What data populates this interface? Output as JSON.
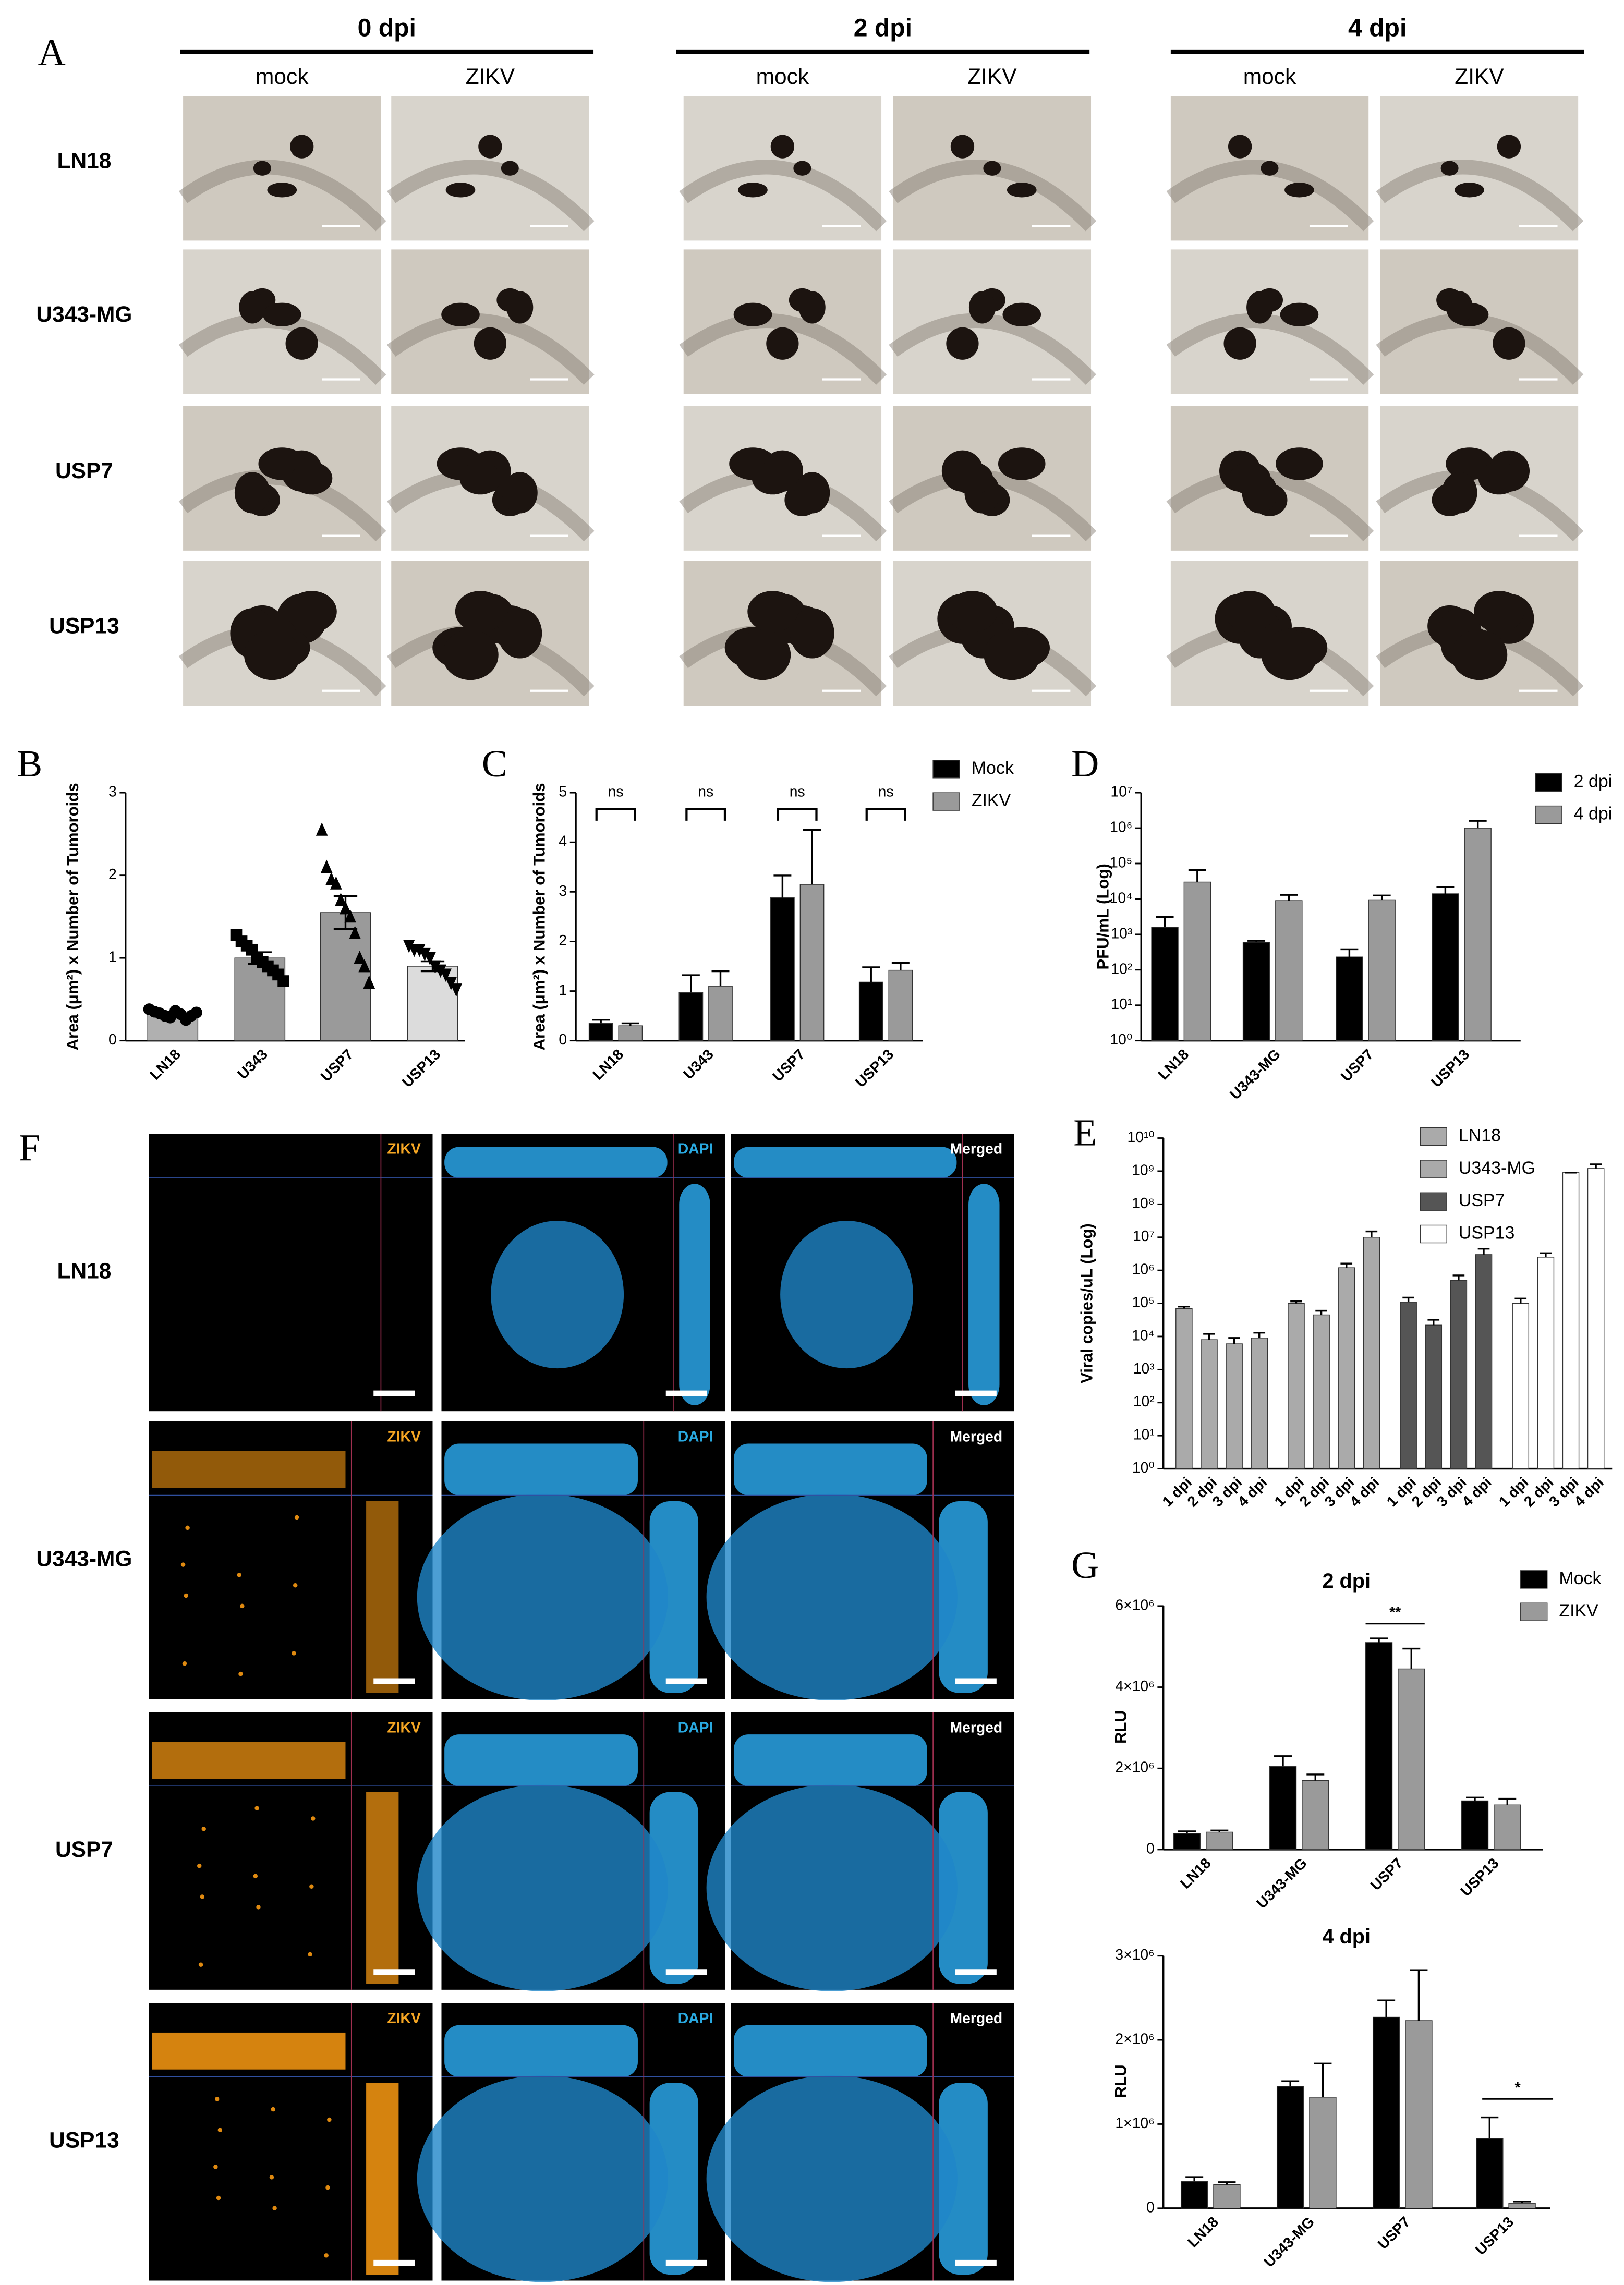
{
  "panel_labels": [
    "A",
    "B",
    "C",
    "D",
    "E",
    "F",
    "G"
  ],
  "panel_a": {
    "timepoints": [
      "0 dpi",
      "2 dpi",
      "4 dpi"
    ],
    "conditions": [
      "mock",
      "ZIKV"
    ],
    "rows": [
      "LN18",
      "U343-MG",
      "USP7",
      "USP13"
    ]
  },
  "panel_f": {
    "channels": [
      "ZIKV",
      "DAPI",
      "Merged"
    ],
    "rows": [
      "LN18",
      "U343-MG",
      "USP7",
      "USP13"
    ]
  },
  "chart_data": [
    {
      "type": "bar_scatter",
      "ylabel": "Area (μm²) x Number of Tumoroids",
      "categories": [
        "LN18",
        "U343",
        "USP7",
        "USP13"
      ],
      "values": [
        0.32,
        1.0,
        1.55,
        0.9
      ],
      "errors": [
        0.03,
        0.07,
        0.2,
        0.06
      ],
      "colors": [
        "#b0b0b0",
        "#9a9a9a",
        "#9a9a9a",
        "#dcdcdc"
      ],
      "markers": [
        "circle",
        "square",
        "triangle",
        "triangle-down"
      ],
      "points": [
        [
          0.38,
          0.35,
          0.33,
          0.3,
          0.28,
          0.36,
          0.32,
          0.25,
          0.3,
          0.34
        ],
        [
          1.28,
          1.2,
          1.15,
          1.1,
          1.0,
          0.95,
          0.9,
          0.85,
          0.8,
          0.72
        ],
        [
          2.55,
          2.1,
          1.95,
          1.9,
          1.7,
          1.6,
          1.5,
          1.3,
          1.0,
          0.9,
          0.7
        ],
        [
          1.15,
          1.1,
          1.1,
          1.05,
          1.0,
          0.9,
          0.85,
          0.8,
          0.7,
          0.62
        ]
      ],
      "ylim": [
        0,
        3
      ],
      "yticks": [
        0,
        1,
        2,
        3
      ]
    },
    {
      "type": "grouped_bar",
      "ylabel": "Area (μm²) x Number of Tumoroids",
      "categories": [
        "LN18",
        "U343",
        "USP7",
        "USP13"
      ],
      "series": [
        {
          "name": "Mock",
          "color": "#000000",
          "values": [
            0.35,
            0.97,
            2.88,
            1.18
          ],
          "errors": [
            0.07,
            0.35,
            0.45,
            0.3
          ]
        },
        {
          "name": "ZIKV",
          "color": "#9a9a9a",
          "values": [
            0.3,
            1.1,
            3.15,
            1.42
          ],
          "errors": [
            0.05,
            0.3,
            1.1,
            0.15
          ]
        }
      ],
      "annotations": [
        "ns",
        "ns",
        "ns",
        "ns"
      ],
      "ylim": [
        0,
        5
      ],
      "yticks": [
        0,
        1,
        2,
        3,
        4,
        5
      ]
    },
    {
      "type": "grouped_bar",
      "log_scale": true,
      "ylabel": "PFU/mL (Log)",
      "categories": [
        "LN18",
        "U343-MG",
        "USP7",
        "USP13"
      ],
      "series": [
        {
          "name": "2 dpi",
          "color": "#000000",
          "values": [
            1600,
            600,
            230,
            14000
          ],
          "errors": [
            1500,
            60,
            150,
            8000
          ]
        },
        {
          "name": "4 dpi",
          "color": "#9a9a9a",
          "values": [
            30000,
            9000,
            9500,
            1000000
          ],
          "errors": [
            35000,
            4000,
            3000,
            600000
          ]
        }
      ],
      "ylim": [
        1,
        10000000
      ],
      "yticks": [
        {
          "value": 1,
          "label": "10⁰"
        },
        {
          "value": 10,
          "label": "10¹"
        },
        {
          "value": 100,
          "label": "10²"
        },
        {
          "value": 1000,
          "label": "10³"
        },
        {
          "value": 10000,
          "label": "10⁴"
        },
        {
          "value": 100000,
          "label": "10⁵"
        },
        {
          "value": 1000000,
          "label": "10⁶"
        },
        {
          "value": 10000000,
          "label": "10⁷"
        }
      ]
    },
    {
      "type": "grouped_bar",
      "group_by": "series",
      "log_scale": true,
      "ylabel": "Viral copies/uL (Log)",
      "categories": [
        "1 dpi",
        "2 dpi",
        "3 dpi",
        "4 dpi"
      ],
      "series": [
        {
          "name": "LN18",
          "color": "#aaaaaa",
          "values": [
            70000,
            8000,
            6000,
            9000
          ],
          "errors": [
            10000,
            4000,
            3000,
            4000
          ]
        },
        {
          "name": "U343-MG",
          "color": "#aaaaaa",
          "values": [
            100000,
            45000,
            1200000,
            10000000
          ],
          "errors": [
            15000,
            15000,
            400000,
            5000000
          ]
        },
        {
          "name": "USP7",
          "color": "#555555",
          "values": [
            110000,
            22000,
            500000,
            3000000
          ],
          "errors": [
            40000,
            10000,
            200000,
            1500000
          ]
        },
        {
          "name": "USP13",
          "color": "#ffffff",
          "values": [
            100000,
            2500000,
            900000000,
            1200000000
          ],
          "errors": [
            40000,
            800000,
            300000,
            400000000
          ]
        }
      ],
      "ylim": [
        1,
        10000000000
      ],
      "yticks": [
        {
          "value": 1,
          "label": "10⁰"
        },
        {
          "value": 10,
          "label": "10¹"
        },
        {
          "value": 100,
          "label": "10²"
        },
        {
          "value": 1000,
          "label": "10³"
        },
        {
          "value": 10000,
          "label": "10⁴"
        },
        {
          "value": 100000,
          "label": "10⁵"
        },
        {
          "value": 1000000,
          "label": "10⁶"
        },
        {
          "value": 10000000,
          "label": "10⁷"
        },
        {
          "value": 100000000,
          "label": "10⁸"
        },
        {
          "value": 1000000000,
          "label": "10⁹"
        },
        {
          "value": 10000000000,
          "label": "10¹⁰"
        }
      ]
    },
    {
      "type": "grouped_bar",
      "title": "2 dpi",
      "ylabel": "RLU",
      "categories": [
        "LN18",
        "U343-MG",
        "USP7",
        "USP13"
      ],
      "series": [
        {
          "name": "Mock",
          "color": "#000000",
          "values": [
            400000,
            2050000,
            5100000,
            1200000
          ],
          "errors": [
            50000,
            250000,
            100000,
            80000
          ]
        },
        {
          "name": "ZIKV",
          "color": "#9a9a9a",
          "values": [
            430000,
            1700000,
            4450000,
            1100000
          ],
          "errors": [
            40000,
            150000,
            500000,
            150000
          ]
        }
      ],
      "annotations": [
        "**"
      ],
      "ylim": [
        0,
        6000000
      ],
      "yticks": [
        0,
        {
          "value": 2000000,
          "label": "2×10⁶"
        },
        {
          "value": 4000000,
          "label": "4×10⁶"
        },
        {
          "value": 6000000,
          "label": "6×10⁶"
        }
      ]
    },
    {
      "type": "grouped_bar",
      "title": "4 dpi",
      "ylabel": "RLU",
      "categories": [
        "LN18",
        "U343-MG",
        "USP7",
        "USP13"
      ],
      "series": [
        {
          "name": "Mock",
          "color": "#000000",
          "values": [
            320000,
            1450000,
            2270000,
            830000
          ],
          "errors": [
            50000,
            60000,
            200000,
            250000
          ]
        },
        {
          "name": "ZIKV",
          "color": "#9a9a9a",
          "values": [
            280000,
            1320000,
            2230000,
            60000
          ],
          "errors": [
            30000,
            400000,
            600000,
            20000
          ]
        }
      ],
      "annotations": [
        "*"
      ],
      "show_legend": false,
      "ylim": [
        0,
        3000000
      ],
      "yticks": [
        0,
        {
          "value": 1000000,
          "label": "1×10⁶"
        },
        {
          "value": 2000000,
          "label": "2×10⁶"
        },
        {
          "value": 3000000,
          "label": "3×10⁶"
        }
      ]
    }
  ]
}
